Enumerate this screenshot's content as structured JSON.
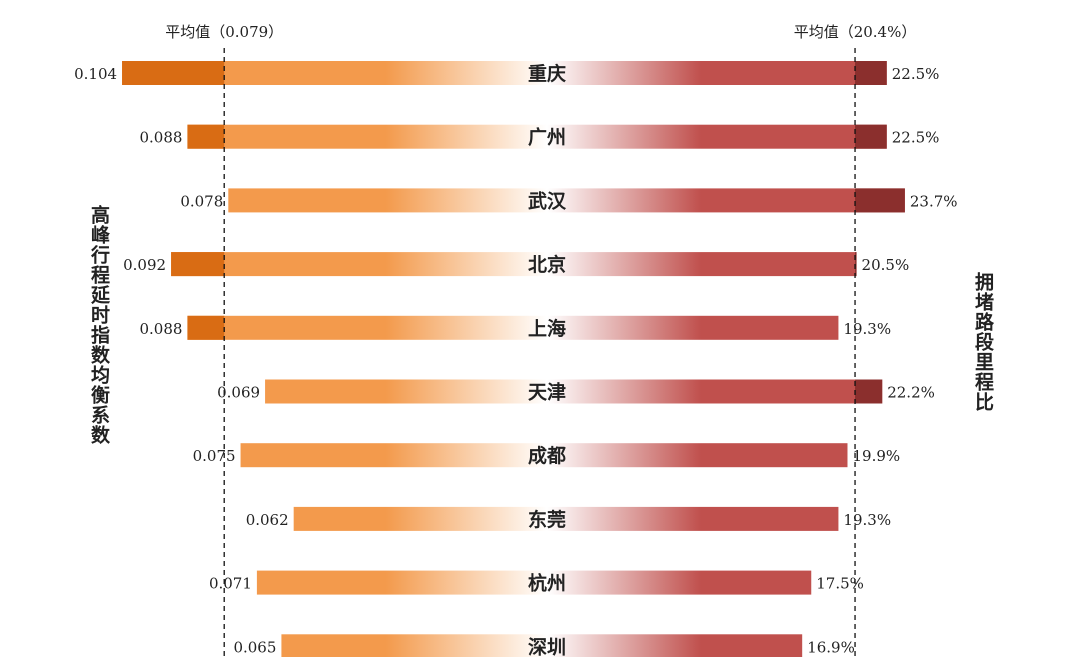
{
  "chart_data": {
    "type": "bar",
    "subtype": "diverging-horizontal",
    "categories": [
      "重庆",
      "广州",
      "武汉",
      "北京",
      "上海",
      "天津",
      "成都",
      "东莞",
      "杭州",
      "深圳"
    ],
    "series": [
      {
        "name": "高峰行程延时指数均衡系数",
        "values": [
          0.104,
          0.088,
          0.078,
          0.092,
          0.088,
          0.069,
          0.075,
          0.062,
          0.071,
          0.065
        ],
        "labels": [
          "0.104",
          "0.088",
          "0.078",
          "0.092",
          "0.088",
          "0.069",
          "0.075",
          "0.062",
          "0.071",
          "0.065"
        ],
        "side": "left",
        "average": 0.079,
        "average_label": "平均值（0.079）",
        "colors": {
          "base": "#f39a4c",
          "above_average": "#d96c14",
          "fade": "#ffffff"
        }
      },
      {
        "name": "拥堵路段里程比",
        "values": [
          22.5,
          22.5,
          23.7,
          20.5,
          19.3,
          22.2,
          19.9,
          19.3,
          17.5,
          16.9
        ],
        "labels": [
          "22.5%",
          "22.5%",
          "23.7%",
          "20.5%",
          "19.3%",
          "22.2%",
          "19.9%",
          "19.3%",
          "17.5%",
          "16.9%"
        ],
        "unit": "%",
        "side": "right",
        "average": 20.4,
        "average_label": "平均值（20.4%）",
        "colors": {
          "base": "#c0504d",
          "above_average": "#8b2f2d",
          "fade": "#ffffff"
        }
      }
    ],
    "axis_titles": {
      "left": "高峰行程延时指数均衡系数",
      "right": "拥堵路段里程比"
    },
    "grid": false,
    "legend": "none",
    "reference_lines": "dashed-vertical"
  }
}
